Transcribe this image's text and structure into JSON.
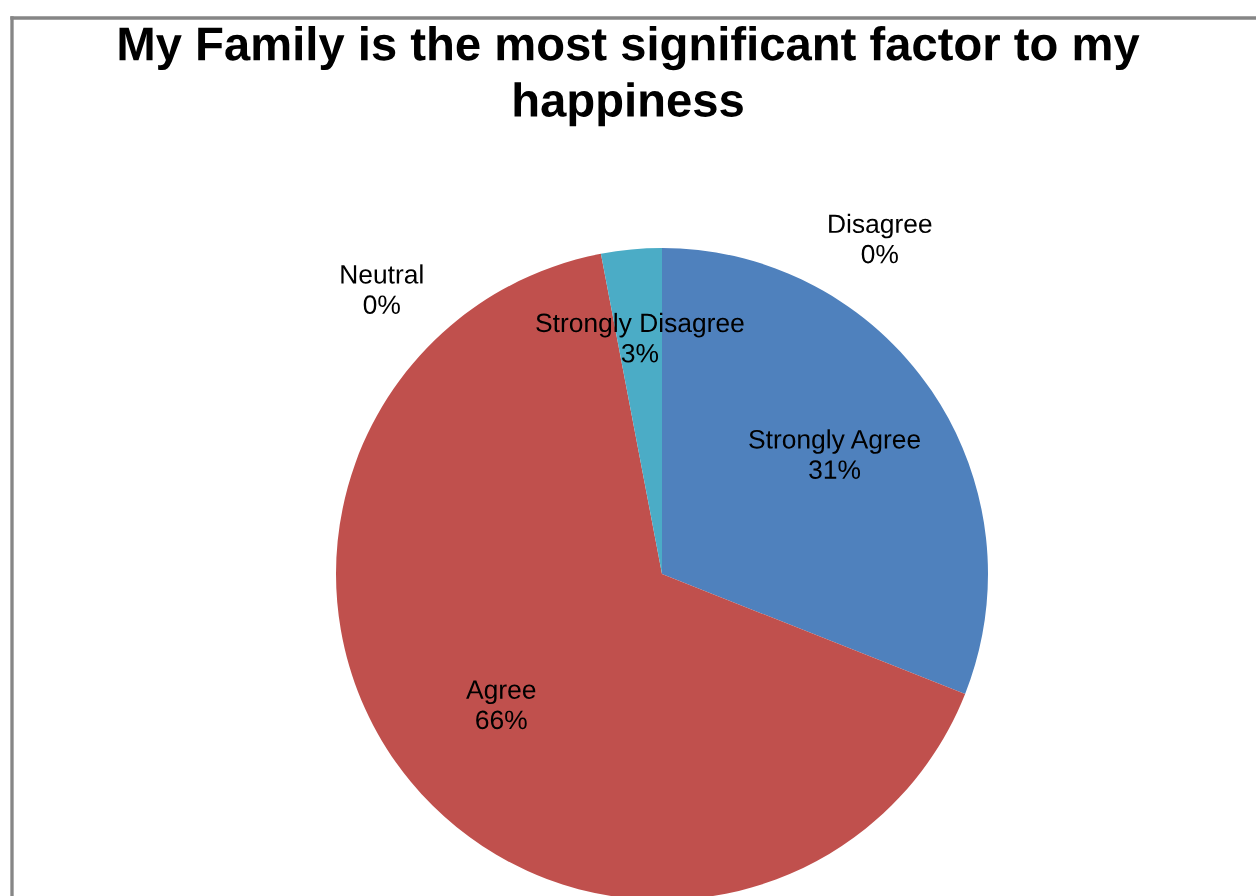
{
  "chart_data": {
    "type": "pie",
    "title": "My Family is the most significant factor to my happiness",
    "categories": [
      "Strongly Agree",
      "Agree",
      "Neutral",
      "Disagree",
      "Strongly Disagree"
    ],
    "values": [
      31,
      66,
      0,
      0,
      3
    ],
    "value_labels": [
      "31%",
      "66%",
      "0%",
      "0%",
      "3%"
    ],
    "colors": [
      "#4f81bd",
      "#c0504d",
      null,
      null,
      "#4bacc6"
    ]
  }
}
